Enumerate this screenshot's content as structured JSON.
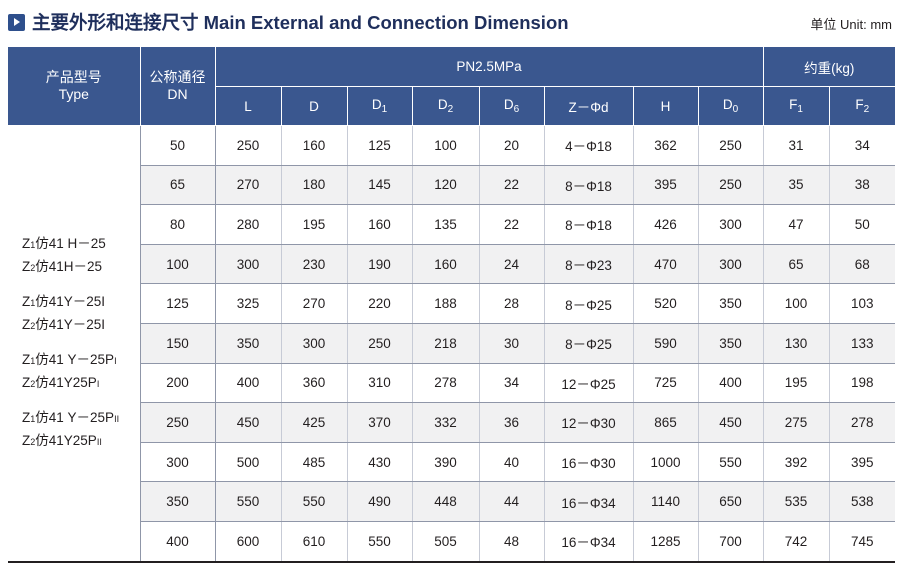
{
  "title": "主要外形和连接尺寸 Main External and Connection Dimension",
  "unit": "单位 Unit: mm",
  "header": {
    "type_cn": "产品型号",
    "type_en": "Type",
    "dn_cn": "公称通径",
    "dn_en": "DN",
    "pressure": "PN2.5MPa",
    "weight": "约重(kg)",
    "cols": [
      {
        "main": "L",
        "sub": ""
      },
      {
        "main": "D",
        "sub": ""
      },
      {
        "main": "D",
        "sub": "1"
      },
      {
        "main": "D",
        "sub": "2"
      },
      {
        "main": "D",
        "sub": "6"
      },
      {
        "main": "Z－Φd",
        "sub": ""
      },
      {
        "main": "H",
        "sub": ""
      },
      {
        "main": "D",
        "sub": "0"
      },
      {
        "main": "F",
        "sub": "1"
      },
      {
        "main": "F",
        "sub": "2"
      }
    ]
  },
  "types": [
    [
      {
        "a": "Z",
        "s": "1",
        "b": "仿41 H－25",
        "p": ""
      },
      {
        "a": "Z",
        "s": "2",
        "b": "仿41H－25",
        "p": ""
      }
    ],
    [
      {
        "a": "Z",
        "s": "1",
        "b": "仿41Y－25I",
        "p": ""
      },
      {
        "a": "Z",
        "s": "2",
        "b": "仿41Y－25I",
        "p": ""
      }
    ],
    [
      {
        "a": "Z",
        "s": "1",
        "b": "仿41 Y－25P",
        "p": "I"
      },
      {
        "a": "Z",
        "s": "2",
        "b": "仿41Y25P",
        "p": "I"
      }
    ],
    [
      {
        "a": "Z",
        "s": "1",
        "b": "仿41 Y－25P",
        "p": "II"
      },
      {
        "a": "Z",
        "s": "2",
        "b": "仿41Y25P",
        "p": "II"
      }
    ]
  ],
  "rows": [
    [
      "50",
      "250",
      "160",
      "125",
      "100",
      "20",
      "4－Φ18",
      "362",
      "250",
      "31",
      "34"
    ],
    [
      "65",
      "270",
      "180",
      "145",
      "120",
      "22",
      "8－Φ18",
      "395",
      "250",
      "35",
      "38"
    ],
    [
      "80",
      "280",
      "195",
      "160",
      "135",
      "22",
      "8－Φ18",
      "426",
      "300",
      "47",
      "50"
    ],
    [
      "100",
      "300",
      "230",
      "190",
      "160",
      "24",
      "8－Φ23",
      "470",
      "300",
      "65",
      "68"
    ],
    [
      "125",
      "325",
      "270",
      "220",
      "188",
      "28",
      "8－Φ25",
      "520",
      "350",
      "100",
      "103"
    ],
    [
      "150",
      "350",
      "300",
      "250",
      "218",
      "30",
      "8－Φ25",
      "590",
      "350",
      "130",
      "133"
    ],
    [
      "200",
      "400",
      "360",
      "310",
      "278",
      "34",
      "12－Φ25",
      "725",
      "400",
      "195",
      "198"
    ],
    [
      "250",
      "450",
      "425",
      "370",
      "332",
      "36",
      "12－Φ30",
      "865",
      "450",
      "275",
      "278"
    ],
    [
      "300",
      "500",
      "485",
      "430",
      "390",
      "40",
      "16－Φ30",
      "1000",
      "550",
      "392",
      "395"
    ],
    [
      "350",
      "550",
      "550",
      "490",
      "448",
      "44",
      "16－Φ34",
      "1140",
      "650",
      "535",
      "538"
    ],
    [
      "400",
      "600",
      "610",
      "550",
      "505",
      "48",
      "16－Φ34",
      "1285",
      "700",
      "742",
      "745"
    ]
  ]
}
